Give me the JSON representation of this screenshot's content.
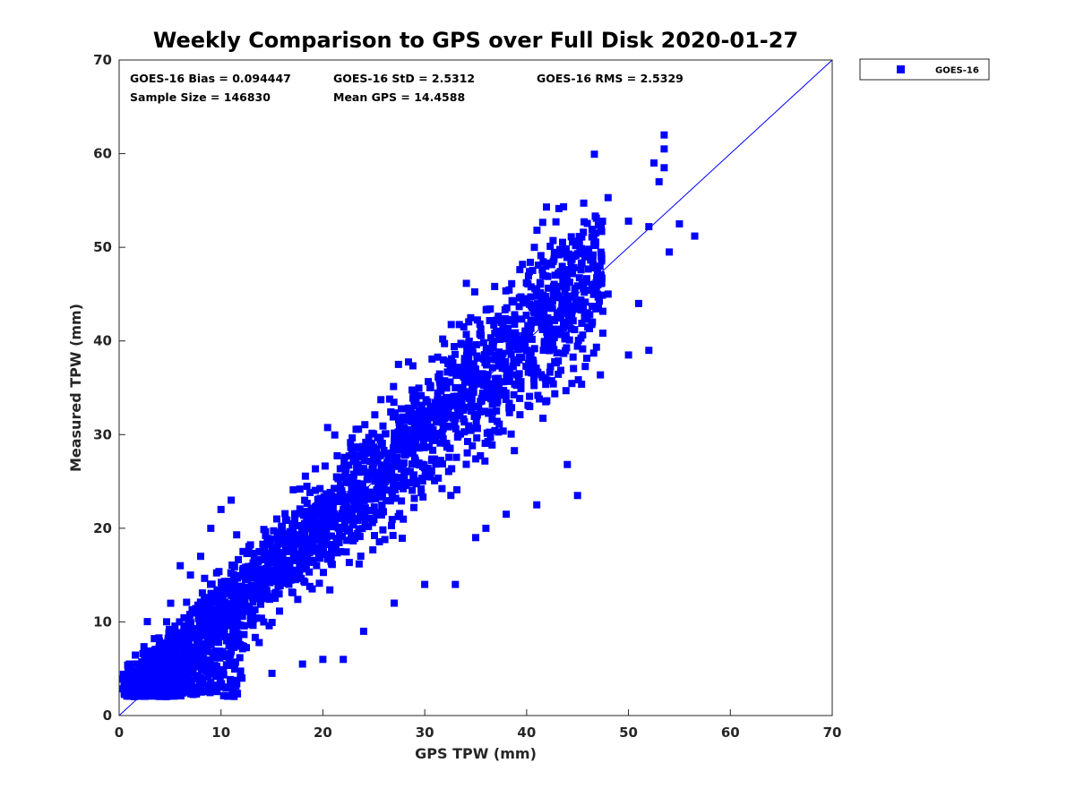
{
  "chart_data": {
    "type": "scatter",
    "title": "Weekly Comparison to GPS over Full Disk 2020-01-27",
    "xlabel": "GPS TPW (mm)",
    "ylabel": "Measured TPW (mm)",
    "xlim": [
      0,
      70
    ],
    "ylim": [
      0,
      70
    ],
    "xticks": [
      "0",
      "10",
      "20",
      "30",
      "40",
      "50",
      "60",
      "70"
    ],
    "yticks": [
      "0",
      "10",
      "20",
      "30",
      "40",
      "50",
      "60",
      "70"
    ],
    "grid": false,
    "legend_position": "outside top-right",
    "stats": {
      "bias": "GOES-16 Bias = 0.094447",
      "std": "GOES-16 StD = 2.5312",
      "rms": "GOES-16 RMS = 2.5329",
      "sample_size": "Sample Size = 146830",
      "mean_gps": "Mean GPS = 14.4588"
    },
    "reference_line": {
      "type": "one-to-one",
      "from": [
        0,
        0
      ],
      "to": [
        70,
        70
      ]
    },
    "series": [
      {
        "name": "GOES-16",
        "color": "#0000ff",
        "marker": "square",
        "description_points": [
          [
            0.5,
            3.5
          ],
          [
            1,
            5.5
          ],
          [
            1.5,
            2.5
          ],
          [
            2,
            4.5
          ],
          [
            2.5,
            6
          ],
          [
            3,
            3
          ],
          [
            3.5,
            7
          ],
          [
            4,
            5
          ],
          [
            5,
            8
          ],
          [
            6,
            6
          ],
          [
            7,
            10
          ],
          [
            8,
            9
          ],
          [
            9,
            12
          ],
          [
            10,
            11
          ],
          [
            11,
            14
          ],
          [
            12,
            13
          ],
          [
            13,
            15
          ],
          [
            14,
            14
          ],
          [
            15,
            17
          ],
          [
            16,
            16
          ],
          [
            17,
            19
          ],
          [
            18,
            18
          ],
          [
            19,
            21
          ],
          [
            20,
            20
          ],
          [
            21,
            23
          ],
          [
            22,
            22
          ],
          [
            23,
            25
          ],
          [
            24,
            24
          ],
          [
            25,
            27
          ],
          [
            26,
            26
          ],
          [
            27,
            29
          ],
          [
            28,
            28
          ],
          [
            29,
            31
          ],
          [
            30,
            30
          ],
          [
            31,
            33
          ],
          [
            32,
            32
          ],
          [
            33,
            35
          ],
          [
            34,
            34
          ],
          [
            35,
            37
          ],
          [
            36,
            36
          ],
          [
            37,
            38
          ],
          [
            38,
            37
          ],
          [
            39,
            40
          ],
          [
            40,
            39
          ],
          [
            41,
            42
          ],
          [
            42,
            41
          ],
          [
            43,
            43
          ],
          [
            44,
            42
          ],
          [
            45,
            44
          ],
          [
            46,
            43
          ],
          [
            47,
            46
          ],
          [
            48,
            45
          ],
          [
            48,
            55.3
          ],
          [
            50,
            52.8
          ],
          [
            52,
            52.2
          ],
          [
            52.5,
            59
          ],
          [
            53,
            57
          ],
          [
            53.5,
            60.5
          ],
          [
            53.5,
            62
          ],
          [
            53.5,
            58.5
          ],
          [
            55,
            52.5
          ],
          [
            56.5,
            51.2
          ],
          [
            54,
            49.5
          ],
          [
            51,
            44
          ],
          [
            52,
            39
          ],
          [
            50,
            38.5
          ],
          [
            45,
            23.5
          ],
          [
            44,
            26.8
          ],
          [
            41,
            22.5
          ],
          [
            38,
            21.5
          ],
          [
            36,
            20
          ],
          [
            35,
            19
          ],
          [
            33,
            14
          ],
          [
            30,
            14
          ],
          [
            27,
            12
          ],
          [
            24,
            9
          ],
          [
            22,
            6
          ],
          [
            20,
            6
          ],
          [
            18,
            5.5
          ],
          [
            15,
            4.5
          ],
          [
            12,
            4
          ],
          [
            9,
            3.5
          ],
          [
            6,
            3
          ],
          [
            3,
            2.2
          ],
          [
            7,
            15
          ],
          [
            8,
            17
          ],
          [
            9,
            20
          ],
          [
            10,
            22
          ],
          [
            11,
            23
          ],
          [
            6,
            16
          ]
        ]
      }
    ]
  }
}
